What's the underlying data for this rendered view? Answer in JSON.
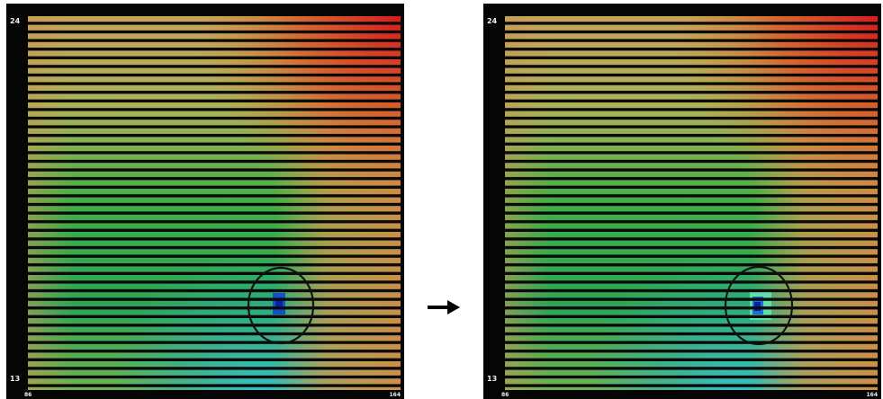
{
  "panels": [
    {
      "y_top_label": "24",
      "y_bottom_label": "13",
      "x_min_label": "86",
      "x_max_label": "164",
      "anomaly_colors": [
        "#1450c8",
        "#0a1fa8"
      ]
    },
    {
      "y_top_label": "24",
      "y_bottom_label": "13",
      "x_min_label": "86",
      "x_max_label": "164",
      "anomaly_colors": [
        "#5fe0a8",
        "#1b6fd6",
        "#0a1fa8"
      ]
    }
  ],
  "colors": {
    "background": "#ffffff",
    "panel_frame": "#050505",
    "stripe_gap": "#0b0b0b",
    "marker_circle": "#111111",
    "arrow": "#000000"
  }
}
